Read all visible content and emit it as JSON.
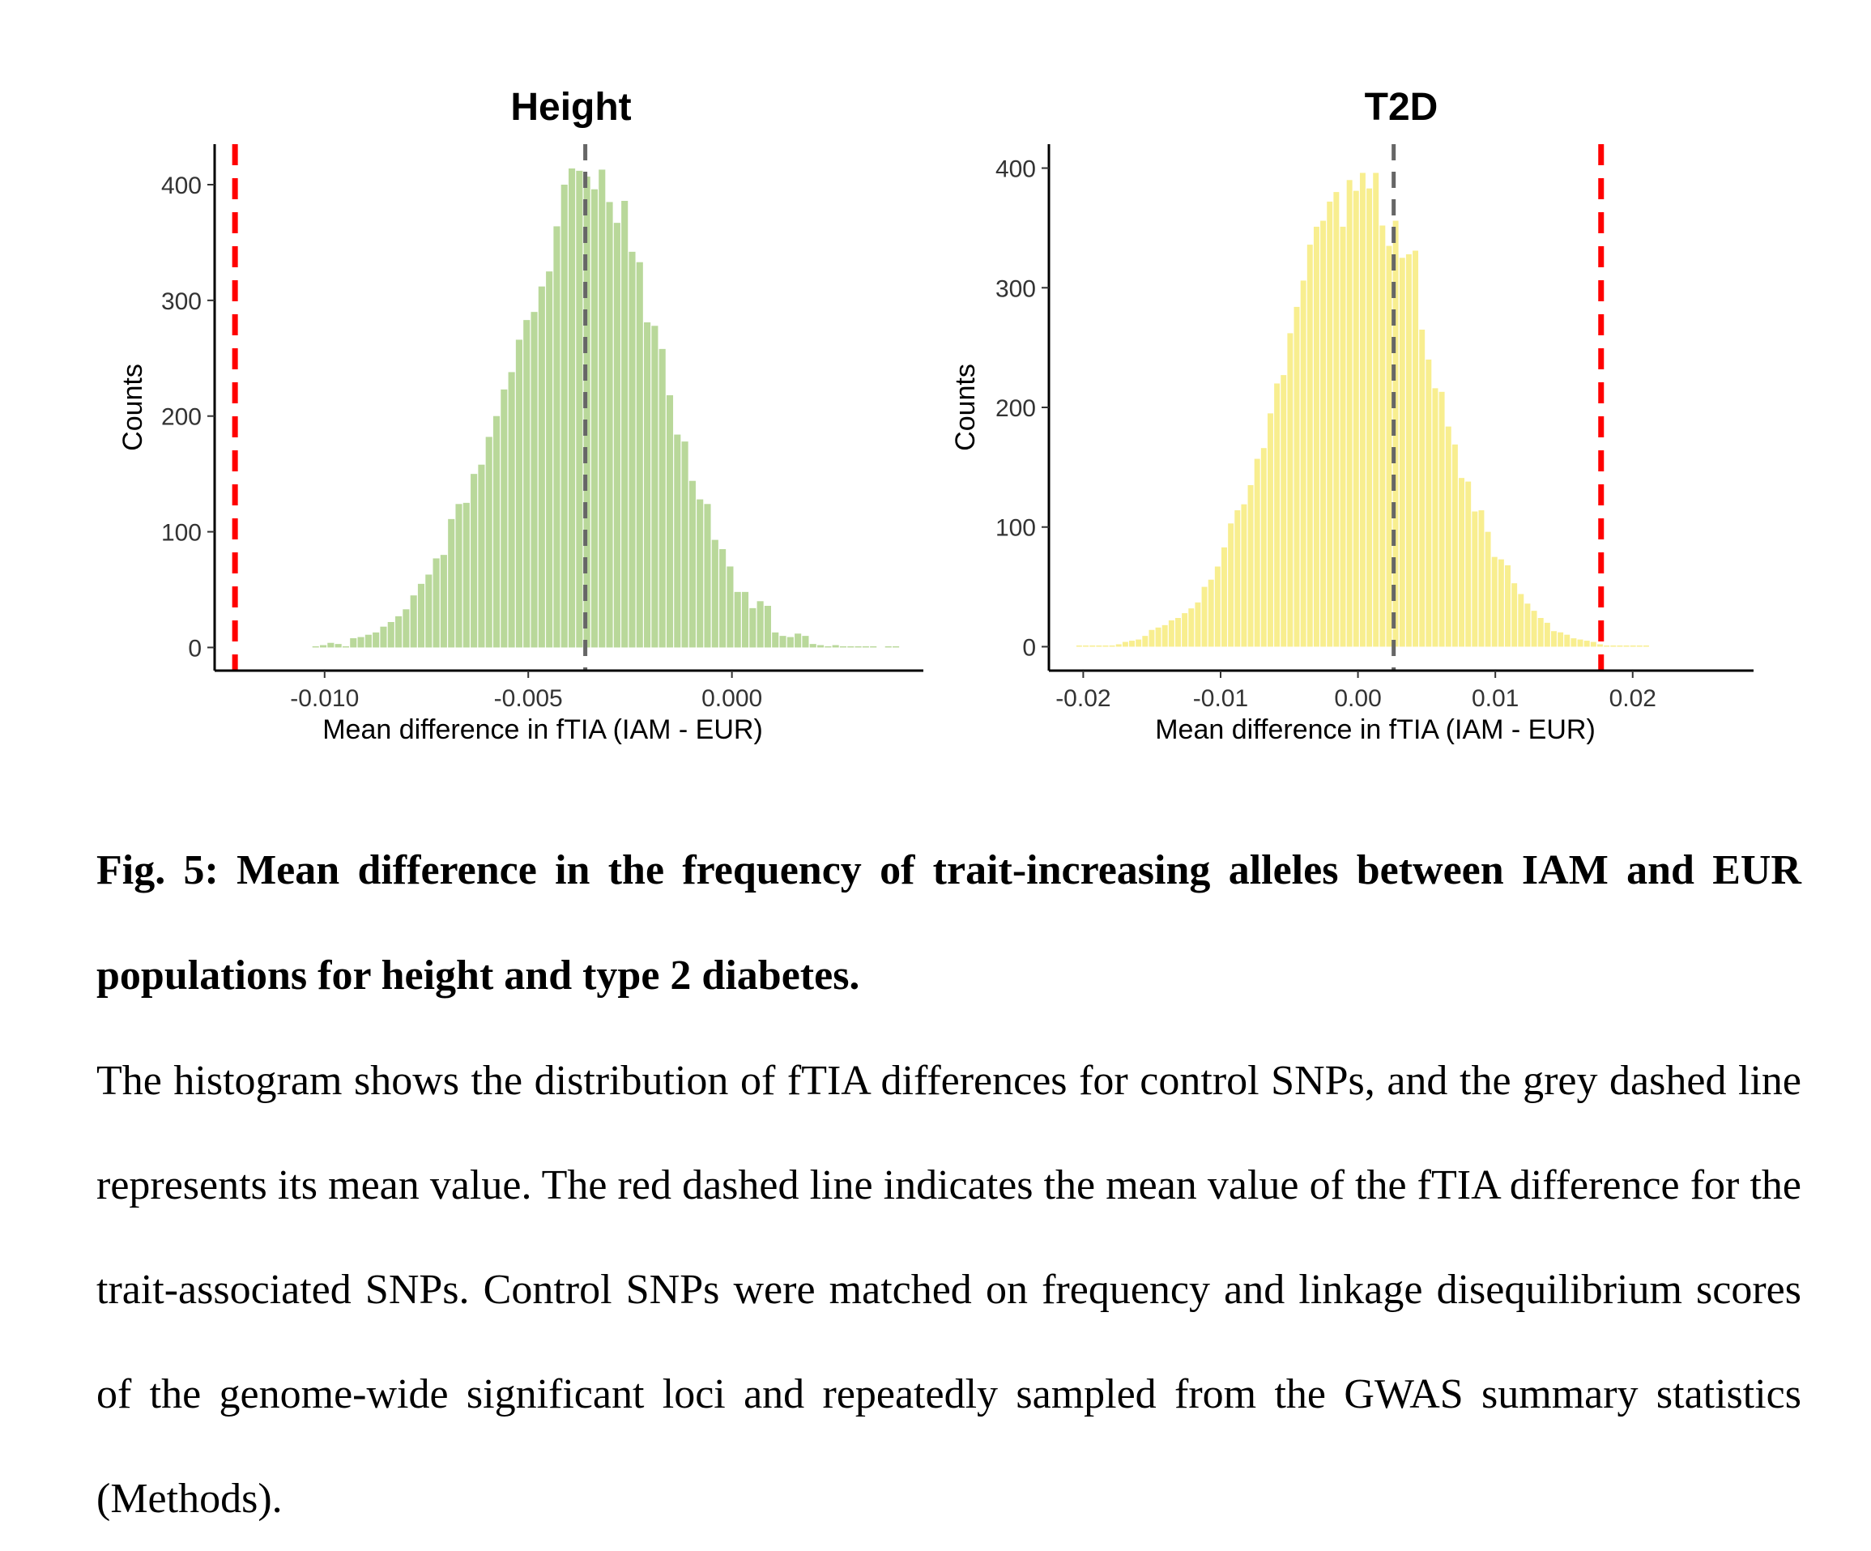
{
  "chart_data": [
    {
      "type": "bar",
      "title": "Height",
      "xlabel": "Mean difference in fTIA (IAM - EUR)",
      "ylabel": "Counts",
      "xlim": [
        -0.0127,
        0.0047
      ],
      "ylim": [
        -20,
        435
      ],
      "x_ticks": [
        -0.01,
        -0.005,
        0.0
      ],
      "x_tick_labels": [
        "-0.010",
        "-0.005",
        "0.000"
      ],
      "y_ticks": [
        0,
        100,
        200,
        300,
        400
      ],
      "y_tick_labels": [
        "0",
        "100",
        "200",
        "300",
        "400"
      ],
      "bar_color": "#b9d89a",
      "bins": {
        "start": -0.0103,
        "width": 0.000185,
        "counts": [
          1,
          2,
          4,
          3,
          1,
          8,
          9,
          11,
          13,
          18,
          22,
          27,
          33,
          45,
          55,
          63,
          77,
          80,
          111,
          124,
          125,
          150,
          158,
          182,
          200,
          223,
          238,
          266,
          283,
          290,
          312,
          325,
          364,
          400,
          414,
          412,
          407,
          396,
          413,
          385,
          367,
          386,
          342,
          333,
          281,
          278,
          258,
          218,
          184,
          178,
          144,
          128,
          124,
          93,
          85,
          70,
          48,
          48,
          34,
          40,
          36,
          13,
          10,
          9,
          12,
          10,
          3,
          2,
          1,
          2,
          1,
          1,
          1,
          1,
          1,
          0,
          1,
          1
        ]
      },
      "reference_lines": [
        {
          "x": -0.0036,
          "color": "#666666",
          "style": "dashed"
        },
        {
          "x": -0.0122,
          "color": "#ff0000",
          "style": "dashed"
        }
      ]
    },
    {
      "type": "bar",
      "title": "T2D",
      "xlabel": "Mean difference in fTIA (IAM - EUR)",
      "ylabel": "Counts",
      "xlim": [
        -0.0225,
        0.0288
      ],
      "ylim": [
        -20,
        420
      ],
      "x_ticks": [
        -0.02,
        -0.01,
        0.0,
        0.01,
        0.02
      ],
      "x_tick_labels": [
        "-0.02",
        "-0.01",
        "0.00",
        "0.01",
        "0.02"
      ],
      "y_ticks": [
        0,
        100,
        200,
        300,
        400
      ],
      "y_tick_labels": [
        "0",
        "100",
        "200",
        "300",
        "400"
      ],
      "bar_color": "#f8ee8f",
      "bins": {
        "start": -0.0205,
        "width": 0.00048,
        "counts": [
          1,
          1,
          1,
          1,
          1,
          1,
          2,
          4,
          5,
          6,
          9,
          14,
          16,
          18,
          22,
          24,
          28,
          32,
          37,
          50,
          56,
          67,
          83,
          103,
          114,
          119,
          135,
          157,
          166,
          195,
          220,
          227,
          262,
          284,
          306,
          336,
          351,
          356,
          372,
          380,
          351,
          390,
          381,
          396,
          383,
          396,
          352,
          335,
          356,
          325,
          328,
          331,
          265,
          240,
          216,
          213,
          184,
          169,
          141,
          138,
          113,
          114,
          96,
          75,
          73,
          68,
          53,
          44,
          36,
          30,
          24,
          20,
          13,
          12,
          10,
          7,
          6,
          5,
          4,
          2,
          1,
          1,
          1,
          1,
          1,
          1,
          1
        ]
      },
      "reference_lines": [
        {
          "x": 0.0026,
          "color": "#666666",
          "style": "dashed"
        },
        {
          "x": 0.0177,
          "color": "#ff0000",
          "style": "dashed"
        }
      ]
    }
  ],
  "caption": {
    "title": "Fig. 5: Mean difference in the frequency of trait-increasing alleles between IAM and EUR populations for height and type 2 diabetes.",
    "body": "The histogram shows the distribution of fTIA differences for control SNPs, and the grey dashed line represents its mean value. The red dashed line indicates the mean value of the fTIA difference for the trait-associated SNPs. Control SNPs were matched on frequency and linkage disequilibrium scores of the genome-wide significant loci and repeatedly sampled from the GWAS summary statistics (Methods)."
  }
}
